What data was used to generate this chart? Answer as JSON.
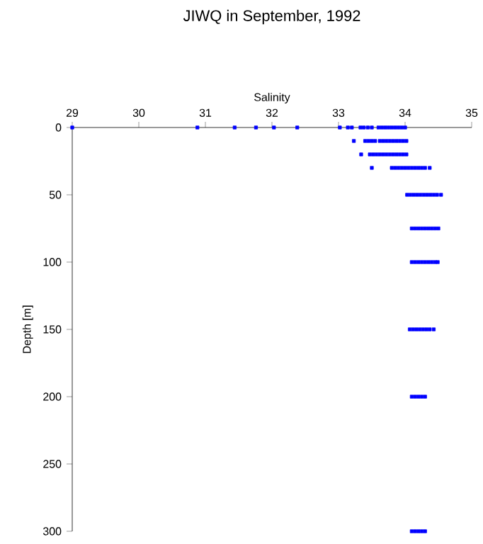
{
  "chart_data": {
    "type": "scatter",
    "title": "JIWQ in September, 1992",
    "xlabel": "Salinity",
    "ylabel": "Depth [m]",
    "xlim": [
      29,
      35
    ],
    "xticks": [
      29,
      30,
      31,
      32,
      33,
      34,
      35
    ],
    "ylim": [
      300,
      0
    ],
    "yticks": [
      0,
      50,
      100,
      150,
      200,
      250,
      300
    ],
    "marker": "square",
    "series": [
      {
        "color": "#0000ff",
        "x": [
          29.0,
          30.88,
          31.44,
          31.76,
          32.03,
          32.38,
          33.02,
          33.14,
          33.2,
          33.33,
          33.38,
          33.44,
          33.5,
          33.6,
          33.65,
          33.7,
          33.75,
          33.8,
          33.85,
          33.9,
          33.95,
          34.0,
          33.23,
          33.4,
          33.45,
          33.5,
          33.55,
          33.62,
          33.67,
          33.72,
          33.77,
          33.82,
          33.87,
          33.92,
          33.97,
          34.02,
          33.34,
          33.47,
          33.52,
          33.57,
          33.62,
          33.67,
          33.72,
          33.77,
          33.82,
          33.87,
          33.92,
          33.97,
          34.02,
          33.5,
          33.8,
          33.85,
          33.9,
          33.95,
          34.0,
          34.05,
          34.1,
          34.15,
          34.2,
          34.25,
          34.3,
          34.37,
          34.03,
          34.08,
          34.13,
          34.18,
          34.23,
          34.28,
          34.33,
          34.38,
          34.43,
          34.48,
          34.54,
          34.1,
          34.15,
          34.2,
          34.25,
          34.3,
          34.35,
          34.4,
          34.45,
          34.5,
          34.1,
          34.15,
          34.2,
          34.25,
          34.3,
          34.35,
          34.4,
          34.45,
          34.49,
          34.07,
          34.12,
          34.17,
          34.22,
          34.27,
          34.32,
          34.37,
          34.43,
          34.1,
          34.15,
          34.2,
          34.25,
          34.3,
          34.1,
          34.15,
          34.2,
          34.25,
          34.3
        ],
        "values": [
          0,
          0,
          0,
          0,
          0,
          0,
          0,
          0,
          0,
          0,
          0,
          0,
          0,
          0,
          0,
          0,
          0,
          0,
          0,
          0,
          0,
          0,
          10,
          10,
          10,
          10,
          10,
          10,
          10,
          10,
          10,
          10,
          10,
          10,
          10,
          10,
          20,
          20,
          20,
          20,
          20,
          20,
          20,
          20,
          20,
          20,
          20,
          20,
          20,
          30,
          30,
          30,
          30,
          30,
          30,
          30,
          30,
          30,
          30,
          30,
          30,
          30,
          50,
          50,
          50,
          50,
          50,
          50,
          50,
          50,
          50,
          50,
          50,
          75,
          75,
          75,
          75,
          75,
          75,
          75,
          75,
          75,
          100,
          100,
          100,
          100,
          100,
          100,
          100,
          100,
          100,
          150,
          150,
          150,
          150,
          150,
          150,
          150,
          150,
          200,
          200,
          200,
          200,
          200,
          300,
          300,
          300,
          300,
          300
        ]
      }
    ]
  }
}
